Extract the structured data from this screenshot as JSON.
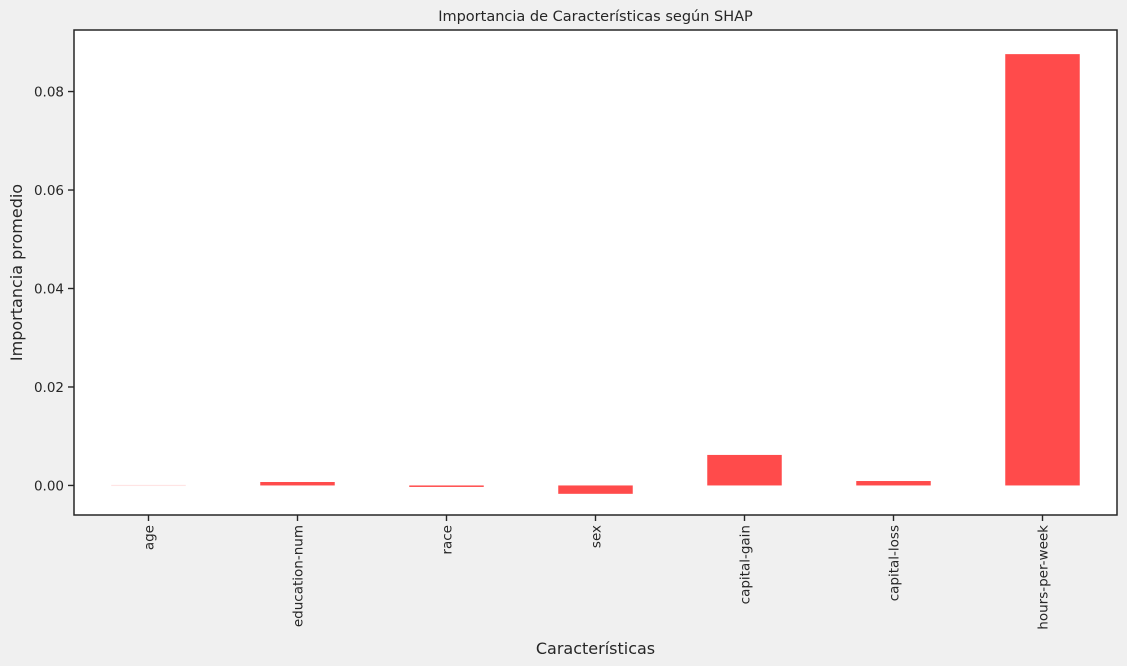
{
  "chart_data": {
    "type": "bar",
    "title": "Importancia de Características según SHAP",
    "xlabel": "Características",
    "ylabel": "Importancia promedio",
    "categories": [
      "age",
      "education-num",
      "race",
      "sex",
      "capital-gain",
      "capital-loss",
      "hours-per-week"
    ],
    "values": [
      0.0001,
      0.0007,
      -0.0003,
      -0.0017,
      0.0062,
      0.0009,
      0.0876
    ],
    "bar_colors": [
      "#ffe4e4",
      "#ff4b4b",
      "#ff4b4b",
      "#ff4b4b",
      "#ff4b4b",
      "#ff4b4b",
      "#ff4b4b"
    ],
    "ylim": [
      -0.006,
      0.0925
    ],
    "yticks": [
      0.0,
      0.02,
      0.04,
      0.06,
      0.08
    ],
    "ytick_labels": [
      "0.00",
      "0.02",
      "0.04",
      "0.06",
      "0.08"
    ],
    "grid": false,
    "legend": "none"
  },
  "colors": {
    "background": "#f0f0f0",
    "plot_background": "#ffffff",
    "bar": "#ff4b4b",
    "axis": "#262626",
    "text": "#262626"
  }
}
